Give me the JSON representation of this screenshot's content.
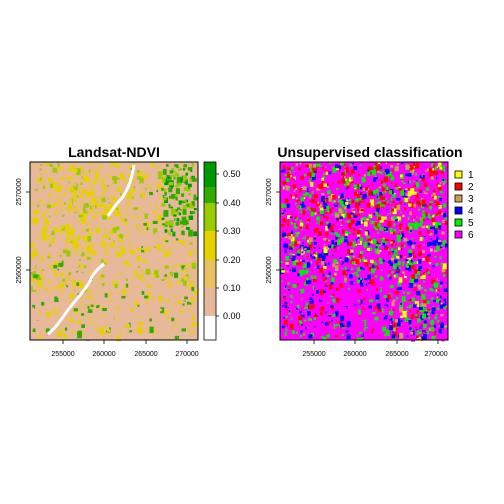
{
  "panels": [
    {
      "title": "Landsat-NDVI",
      "x_ticks": [
        "255000",
        "260000",
        "265000",
        "270000"
      ],
      "y_ticks": [
        "2570000",
        "2560000"
      ],
      "colorbar": {
        "ticks": [
          "0.50",
          "0.40",
          "0.30",
          "0.20",
          "0.10",
          "0.00"
        ],
        "colors": [
          "#009900",
          "#33aa00",
          "#99cc00",
          "#e6d200",
          "#e8c060",
          "#e8b89a",
          "#ffffff"
        ]
      },
      "palette": {
        "white": "#ffffff",
        "salmon": "#e8b89a",
        "tan": "#e8c060",
        "yellow": "#e6d200",
        "lightgreen": "#99cc00",
        "green": "#33aa00",
        "darkgreen": "#009900"
      }
    },
    {
      "title": "Unsupervised classification",
      "x_ticks": [
        "255000",
        "260000",
        "265000",
        "270000"
      ],
      "y_ticks": [
        "2570000",
        "2560000"
      ],
      "legend": [
        {
          "label": "1",
          "color": "#ffff00"
        },
        {
          "label": "2",
          "color": "#ff0000"
        },
        {
          "label": "3",
          "color": "#c8a050"
        },
        {
          "label": "4",
          "color": "#0000ff"
        },
        {
          "label": "5",
          "color": "#00ee00"
        },
        {
          "label": "6",
          "color": "#ff00ff"
        }
      ]
    }
  ]
}
